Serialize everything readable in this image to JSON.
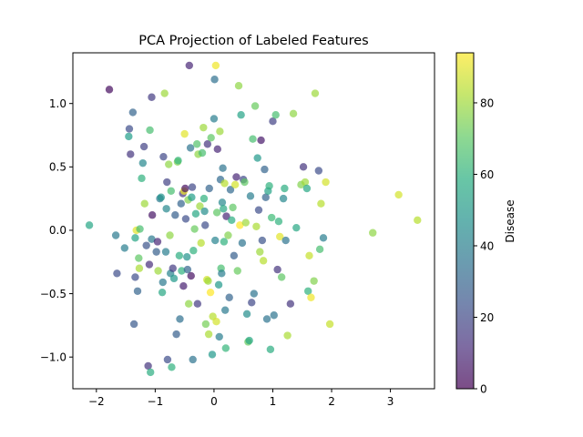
{
  "chart_data": {
    "type": "scatter",
    "title": "PCA Projection of Labeled Features",
    "xlabel": "",
    "ylabel": "",
    "xlim": [
      -2.4,
      3.75
    ],
    "ylim": [
      -1.25,
      1.4
    ],
    "xticks": [
      -2,
      -1,
      0,
      1,
      2,
      3
    ],
    "xtick_labels": [
      "−2",
      "−1",
      "0",
      "1",
      "2",
      "3"
    ],
    "yticks": [
      -1.0,
      -0.5,
      0.0,
      0.5,
      1.0
    ],
    "ytick_labels": [
      "−1.0",
      "−0.5",
      "0.0",
      "0.5",
      "1.0"
    ],
    "grid": false,
    "colormap": "viridis",
    "colorbar": {
      "label": "Disease",
      "range": [
        0,
        94
      ],
      "ticks": [
        0,
        20,
        40,
        60,
        80
      ],
      "tick_labels": [
        "0",
        "20",
        "40",
        "60",
        "80"
      ]
    },
    "points": [
      {
        "x": -2.12,
        "y": 0.04,
        "c": 55
      },
      {
        "x": -1.78,
        "y": 1.11,
        "c": 3
      },
      {
        "x": -1.67,
        "y": -0.04,
        "c": 38
      },
      {
        "x": -1.65,
        "y": -0.34,
        "c": 22
      },
      {
        "x": -1.52,
        "y": -0.14,
        "c": 40
      },
      {
        "x": -1.45,
        "y": 0.74,
        "c": 52
      },
      {
        "x": -1.44,
        "y": 0.8,
        "c": 22
      },
      {
        "x": -1.42,
        "y": 0.6,
        "c": 14
      },
      {
        "x": -1.38,
        "y": 0.93,
        "c": 30
      },
      {
        "x": -1.36,
        "y": -0.74,
        "c": 26
      },
      {
        "x": -1.34,
        "y": -0.37,
        "c": 22
      },
      {
        "x": -1.34,
        "y": -0.06,
        "c": 55
      },
      {
        "x": -1.32,
        "y": 0.0,
        "c": 90
      },
      {
        "x": -1.3,
        "y": -0.48,
        "c": 30
      },
      {
        "x": -1.28,
        "y": -0.22,
        "c": 70
      },
      {
        "x": -1.27,
        "y": -0.3,
        "c": 82
      },
      {
        "x": -1.26,
        "y": 0.01,
        "c": 66
      },
      {
        "x": -1.23,
        "y": 0.41,
        "c": 60
      },
      {
        "x": -1.21,
        "y": 0.53,
        "c": 44
      },
      {
        "x": -1.19,
        "y": 0.66,
        "c": 18
      },
      {
        "x": -1.18,
        "y": 0.21,
        "c": 80
      },
      {
        "x": -1.15,
        "y": -0.12,
        "c": 24
      },
      {
        "x": -1.12,
        "y": -1.07,
        "c": 14
      },
      {
        "x": -1.1,
        "y": -0.27,
        "c": 12
      },
      {
        "x": -1.09,
        "y": 0.79,
        "c": 66
      },
      {
        "x": -1.08,
        "y": -1.12,
        "c": 58
      },
      {
        "x": -1.06,
        "y": 1.05,
        "c": 16
      },
      {
        "x": -1.06,
        "y": -0.07,
        "c": 38
      },
      {
        "x": -1.05,
        "y": 0.12,
        "c": 5
      },
      {
        "x": -0.98,
        "y": -0.17,
        "c": 28
      },
      {
        "x": -0.96,
        "y": -0.09,
        "c": 10
      },
      {
        "x": -0.95,
        "y": -0.32,
        "c": 80
      },
      {
        "x": -0.92,
        "y": 0.25,
        "c": 38
      },
      {
        "x": -0.9,
        "y": 0.26,
        "c": 48
      },
      {
        "x": -0.88,
        "y": -0.49,
        "c": 56
      },
      {
        "x": -0.87,
        "y": -0.41,
        "c": 38
      },
      {
        "x": -0.86,
        "y": 0.58,
        "c": 20
      },
      {
        "x": -0.84,
        "y": 1.08,
        "c": 80
      },
      {
        "x": -0.82,
        "y": -0.17,
        "c": 40
      },
      {
        "x": -0.81,
        "y": 0.17,
        "c": 44
      },
      {
        "x": -0.8,
        "y": 0.38,
        "c": 18
      },
      {
        "x": -0.79,
        "y": -1.02,
        "c": 22
      },
      {
        "x": -0.77,
        "y": 0.52,
        "c": 78
      },
      {
        "x": -0.75,
        "y": -0.04,
        "c": 78
      },
      {
        "x": -0.74,
        "y": -0.34,
        "c": 42
      },
      {
        "x": -0.73,
        "y": 0.31,
        "c": 66
      },
      {
        "x": -0.72,
        "y": -1.08,
        "c": 60
      },
      {
        "x": -0.7,
        "y": -0.3,
        "c": 16
      },
      {
        "x": -0.68,
        "y": -0.38,
        "c": 50
      },
      {
        "x": -0.66,
        "y": 0.12,
        "c": 28
      },
      {
        "x": -0.64,
        "y": -0.82,
        "c": 28
      },
      {
        "x": -0.62,
        "y": 0.54,
        "c": 76
      },
      {
        "x": -0.61,
        "y": 0.55,
        "c": 62
      },
      {
        "x": -0.59,
        "y": -0.2,
        "c": 58
      },
      {
        "x": -0.58,
        "y": -0.7,
        "c": 34
      },
      {
        "x": -0.56,
        "y": 0.21,
        "c": 30
      },
      {
        "x": -0.55,
        "y": -0.32,
        "c": 60
      },
      {
        "x": -0.53,
        "y": 0.29,
        "c": 14
      },
      {
        "x": -0.52,
        "y": -0.44,
        "c": 8
      },
      {
        "x": -0.51,
        "y": 0.31,
        "c": 92
      },
      {
        "x": -0.5,
        "y": 0.76,
        "c": 90
      },
      {
        "x": -0.49,
        "y": 0.33,
        "c": 4
      },
      {
        "x": -0.48,
        "y": 0.09,
        "c": 22
      },
      {
        "x": -0.46,
        "y": -0.21,
        "c": 48
      },
      {
        "x": -0.45,
        "y": -0.31,
        "c": 30
      },
      {
        "x": -0.44,
        "y": 0.24,
        "c": 76
      },
      {
        "x": -0.43,
        "y": -0.58,
        "c": 78
      },
      {
        "x": -0.42,
        "y": 1.3,
        "c": 10
      },
      {
        "x": -0.4,
        "y": 0.65,
        "c": 36
      },
      {
        "x": -0.39,
        "y": -0.36,
        "c": 4
      },
      {
        "x": -0.38,
        "y": 0.26,
        "c": 52
      },
      {
        "x": -0.37,
        "y": 0.34,
        "c": 20
      },
      {
        "x": -0.36,
        "y": -1.02,
        "c": 36
      },
      {
        "x": -0.35,
        "y": -0.16,
        "c": 60
      },
      {
        "x": -0.33,
        "y": 0.01,
        "c": 72
      },
      {
        "x": -0.31,
        "y": 0.13,
        "c": 56
      },
      {
        "x": -0.29,
        "y": 0.68,
        "c": 68
      },
      {
        "x": -0.28,
        "y": -0.58,
        "c": 16
      },
      {
        "x": -0.27,
        "y": 0.6,
        "c": 78
      },
      {
        "x": -0.24,
        "y": 0.19,
        "c": 80
      },
      {
        "x": -0.22,
        "y": -0.1,
        "c": 84
      },
      {
        "x": -0.2,
        "y": 0.61,
        "c": 66
      },
      {
        "x": -0.18,
        "y": 0.81,
        "c": 80
      },
      {
        "x": -0.17,
        "y": 0.25,
        "c": 60
      },
      {
        "x": -0.16,
        "y": 0.15,
        "c": 46
      },
      {
        "x": -0.15,
        "y": 0.04,
        "c": 22
      },
      {
        "x": -0.14,
        "y": -0.74,
        "c": 74
      },
      {
        "x": -0.12,
        "y": -0.39,
        "c": 88
      },
      {
        "x": -0.11,
        "y": 0.68,
        "c": 14
      },
      {
        "x": -0.1,
        "y": -0.4,
        "c": 80
      },
      {
        "x": -0.09,
        "y": -0.82,
        "c": 82
      },
      {
        "x": -0.08,
        "y": 0.33,
        "c": 30
      },
      {
        "x": -0.06,
        "y": -0.49,
        "c": 94
      },
      {
        "x": -0.05,
        "y": 0.73,
        "c": 70
      },
      {
        "x": -0.03,
        "y": -0.98,
        "c": 50
      },
      {
        "x": -0.02,
        "y": -0.68,
        "c": 84
      },
      {
        "x": 0.0,
        "y": 0.88,
        "c": 40
      },
      {
        "x": 0.01,
        "y": 1.19,
        "c": 34
      },
      {
        "x": 0.02,
        "y": -0.08,
        "c": 42
      },
      {
        "x": 0.03,
        "y": 1.3,
        "c": 92
      },
      {
        "x": 0.04,
        "y": -0.72,
        "c": 88
      },
      {
        "x": 0.05,
        "y": 0.14,
        "c": 70
      },
      {
        "x": 0.06,
        "y": 0.64,
        "c": 10
      },
      {
        "x": 0.08,
        "y": -0.43,
        "c": 50
      },
      {
        "x": 0.09,
        "y": -0.84,
        "c": 40
      },
      {
        "x": 0.1,
        "y": 0.78,
        "c": 80
      },
      {
        "x": 0.11,
        "y": 0.4,
        "c": 32
      },
      {
        "x": 0.12,
        "y": -0.3,
        "c": 66
      },
      {
        "x": 0.13,
        "y": -0.34,
        "c": 40
      },
      {
        "x": 0.14,
        "y": 0.22,
        "c": 44
      },
      {
        "x": 0.15,
        "y": 0.49,
        "c": 36
      },
      {
        "x": 0.16,
        "y": 0.17,
        "c": 56
      },
      {
        "x": 0.17,
        "y": -0.09,
        "c": 60
      },
      {
        "x": 0.18,
        "y": 0.37,
        "c": 84
      },
      {
        "x": 0.19,
        "y": -0.63,
        "c": 38
      },
      {
        "x": 0.2,
        "y": -0.93,
        "c": 62
      },
      {
        "x": 0.21,
        "y": 0.11,
        "c": 10
      },
      {
        "x": 0.24,
        "y": -0.04,
        "c": 76
      },
      {
        "x": 0.26,
        "y": -0.53,
        "c": 30
      },
      {
        "x": 0.28,
        "y": 0.32,
        "c": 32
      },
      {
        "x": 0.3,
        "y": 0.08,
        "c": 58
      },
      {
        "x": 0.32,
        "y": 0.18,
        "c": 70
      },
      {
        "x": 0.34,
        "y": -0.2,
        "c": 28
      },
      {
        "x": 0.36,
        "y": 0.36,
        "c": 88
      },
      {
        "x": 0.38,
        "y": 0.42,
        "c": 10
      },
      {
        "x": 0.4,
        "y": -0.32,
        "c": 72
      },
      {
        "x": 0.42,
        "y": 1.14,
        "c": 78
      },
      {
        "x": 0.44,
        "y": 0.04,
        "c": 94
      },
      {
        "x": 0.46,
        "y": 0.91,
        "c": 54
      },
      {
        "x": 0.48,
        "y": -0.1,
        "c": 36
      },
      {
        "x": 0.5,
        "y": 0.4,
        "c": 20
      },
      {
        "x": 0.52,
        "y": 0.38,
        "c": 70
      },
      {
        "x": 0.54,
        "y": 0.06,
        "c": 80
      },
      {
        "x": 0.56,
        "y": -0.66,
        "c": 46
      },
      {
        "x": 0.58,
        "y": -0.88,
        "c": 72
      },
      {
        "x": 0.6,
        "y": -0.87,
        "c": 56
      },
      {
        "x": 0.62,
        "y": 0.27,
        "c": 40
      },
      {
        "x": 0.64,
        "y": -0.57,
        "c": 20
      },
      {
        "x": 0.66,
        "y": 0.72,
        "c": 66
      },
      {
        "x": 0.68,
        "y": -0.5,
        "c": 36
      },
      {
        "x": 0.7,
        "y": 0.98,
        "c": 72
      },
      {
        "x": 0.72,
        "y": 0.03,
        "c": 82
      },
      {
        "x": 0.74,
        "y": 0.57,
        "c": 50
      },
      {
        "x": 0.76,
        "y": 0.16,
        "c": 22
      },
      {
        "x": 0.78,
        "y": -0.17,
        "c": 80
      },
      {
        "x": 0.8,
        "y": 0.71,
        "c": 6
      },
      {
        "x": 0.82,
        "y": -0.08,
        "c": 24
      },
      {
        "x": 0.84,
        "y": -0.24,
        "c": 84
      },
      {
        "x": 0.86,
        "y": 0.48,
        "c": 30
      },
      {
        "x": 0.88,
        "y": 0.26,
        "c": 30
      },
      {
        "x": 0.9,
        "y": -0.7,
        "c": 36
      },
      {
        "x": 0.92,
        "y": 0.31,
        "c": 54
      },
      {
        "x": 0.94,
        "y": 0.35,
        "c": 60
      },
      {
        "x": 0.96,
        "y": -0.94,
        "c": 58
      },
      {
        "x": 0.98,
        "y": 0.1,
        "c": 64
      },
      {
        "x": 1.0,
        "y": 0.86,
        "c": 18
      },
      {
        "x": 1.02,
        "y": -0.67,
        "c": 36
      },
      {
        "x": 1.05,
        "y": 0.91,
        "c": 66
      },
      {
        "x": 1.08,
        "y": -0.31,
        "c": 14
      },
      {
        "x": 1.1,
        "y": 0.07,
        "c": 60
      },
      {
        "x": 1.12,
        "y": -0.05,
        "c": 90
      },
      {
        "x": 1.15,
        "y": -0.37,
        "c": 70
      },
      {
        "x": 1.18,
        "y": 0.25,
        "c": 44
      },
      {
        "x": 1.2,
        "y": 0.33,
        "c": 58
      },
      {
        "x": 1.22,
        "y": -0.08,
        "c": 36
      },
      {
        "x": 1.25,
        "y": -0.83,
        "c": 82
      },
      {
        "x": 1.3,
        "y": -0.58,
        "c": 14
      },
      {
        "x": 1.35,
        "y": 0.92,
        "c": 78
      },
      {
        "x": 1.4,
        "y": 0.02,
        "c": 56
      },
      {
        "x": 1.48,
        "y": 0.36,
        "c": 76
      },
      {
        "x": 1.52,
        "y": 0.5,
        "c": 14
      },
      {
        "x": 1.55,
        "y": 0.38,
        "c": 80
      },
      {
        "x": 1.58,
        "y": 0.33,
        "c": 56
      },
      {
        "x": 1.6,
        "y": -0.48,
        "c": 60
      },
      {
        "x": 1.62,
        "y": -0.2,
        "c": 86
      },
      {
        "x": 1.65,
        "y": -0.53,
        "c": 92
      },
      {
        "x": 1.7,
        "y": -0.4,
        "c": 76
      },
      {
        "x": 1.72,
        "y": 1.08,
        "c": 80
      },
      {
        "x": 1.78,
        "y": 0.47,
        "c": 22
      },
      {
        "x": 1.8,
        "y": -0.15,
        "c": 66
      },
      {
        "x": 1.82,
        "y": 0.21,
        "c": 84
      },
      {
        "x": 1.86,
        "y": -0.06,
        "c": 40
      },
      {
        "x": 1.9,
        "y": 0.38,
        "c": 88
      },
      {
        "x": 1.97,
        "y": -0.74,
        "c": 86
      },
      {
        "x": 2.7,
        "y": -0.02,
        "c": 78
      },
      {
        "x": 3.14,
        "y": 0.28,
        "c": 88
      },
      {
        "x": 3.46,
        "y": 0.08,
        "c": 84
      }
    ]
  }
}
